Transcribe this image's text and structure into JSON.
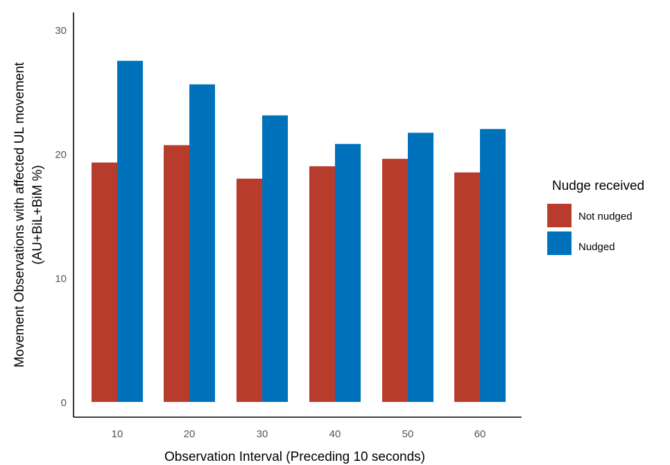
{
  "chart_data": {
    "type": "bar",
    "categories": [
      "10",
      "20",
      "30",
      "40",
      "50",
      "60"
    ],
    "series": [
      {
        "name": "Not nudged",
        "color": "#B83C2B",
        "values": [
          19.3,
          20.7,
          18.0,
          19.0,
          19.6,
          18.5
        ]
      },
      {
        "name": "Nudged",
        "color": "#0072BB",
        "values": [
          27.5,
          25.6,
          23.1,
          20.8,
          21.7,
          22.0
        ]
      }
    ],
    "xlabel": "Observation Interval (Preceding 10 seconds)",
    "ylabel_line1": "Movement Observations with affected UL movement",
    "ylabel_line2": "(AU+BiL+BiM %)",
    "ylim": [
      0,
      31
    ],
    "yticks": [
      "0",
      "10",
      "20",
      "30"
    ],
    "grid": false,
    "legend": {
      "title": "Nudge received",
      "placement": "right"
    }
  }
}
